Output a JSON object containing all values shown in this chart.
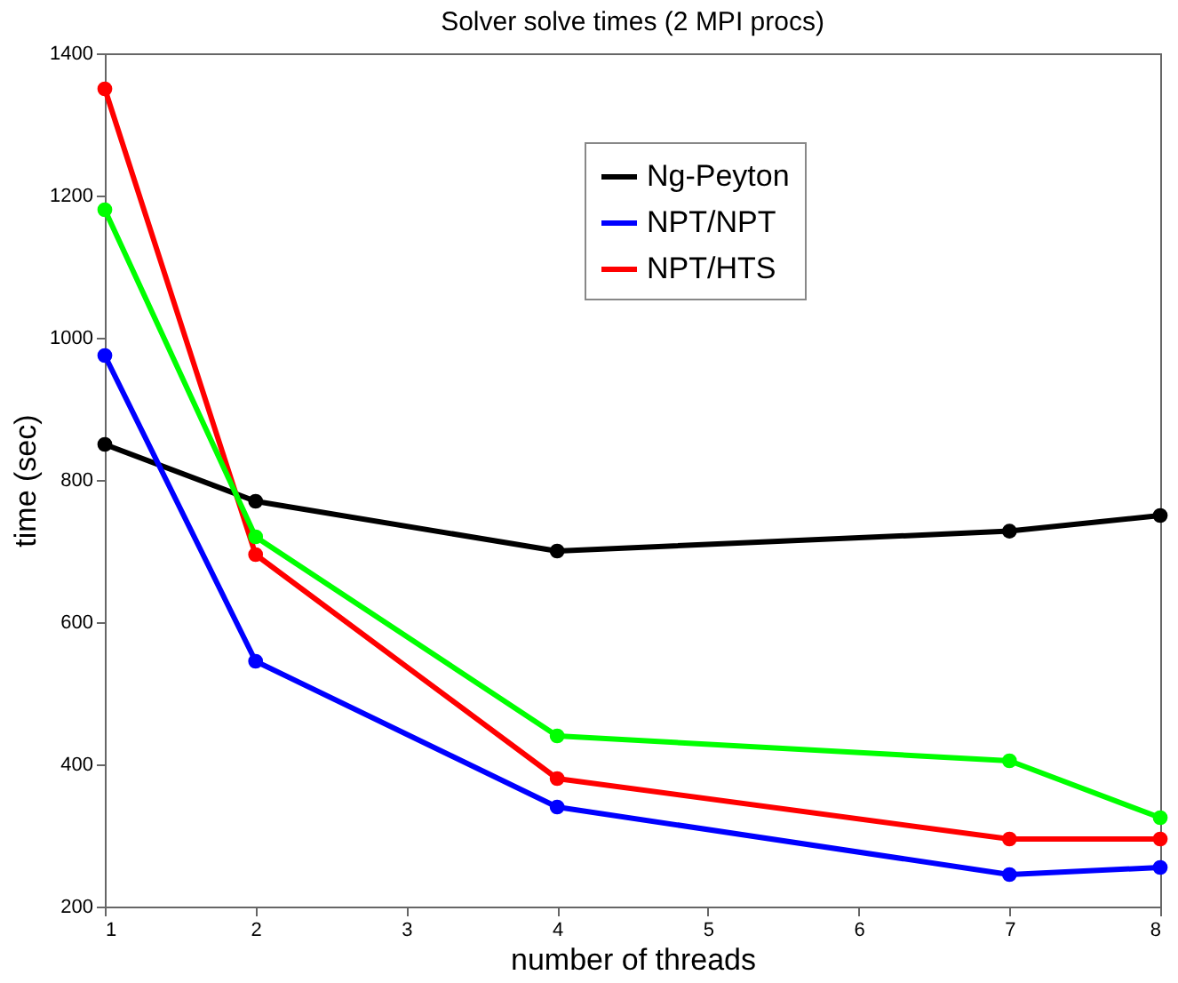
{
  "chart_data": {
    "type": "line",
    "title": "Solver solve times (2 MPI procs)",
    "xlabel": "number of threads",
    "ylabel": "time (sec)",
    "x": [
      1,
      2,
      4,
      7,
      8
    ],
    "series": [
      {
        "name": "Ng-Peyton",
        "color": "#000000",
        "values": [
          850,
          770,
          700,
          728,
          750
        ]
      },
      {
        "name": "NPT/NPT",
        "color": "#0000ff",
        "values": [
          975,
          545,
          340,
          245,
          255
        ]
      },
      {
        "name": "NPT/HTS",
        "color": "#ff0000",
        "values": [
          1350,
          695,
          380,
          295,
          295
        ]
      },
      {
        "color": "#00ff00",
        "values": [
          1180,
          720,
          440,
          405,
          325
        ]
      }
    ],
    "xlim": [
      1,
      8
    ],
    "xticks": [
      1,
      2,
      3,
      4,
      5,
      6,
      7,
      8
    ],
    "ylim": [
      200,
      1400
    ],
    "yticks": [
      200,
      400,
      600,
      800,
      1000,
      1200,
      1400
    ],
    "grid": false,
    "legend": "top right",
    "marker": "circle",
    "line_style": "solid"
  }
}
